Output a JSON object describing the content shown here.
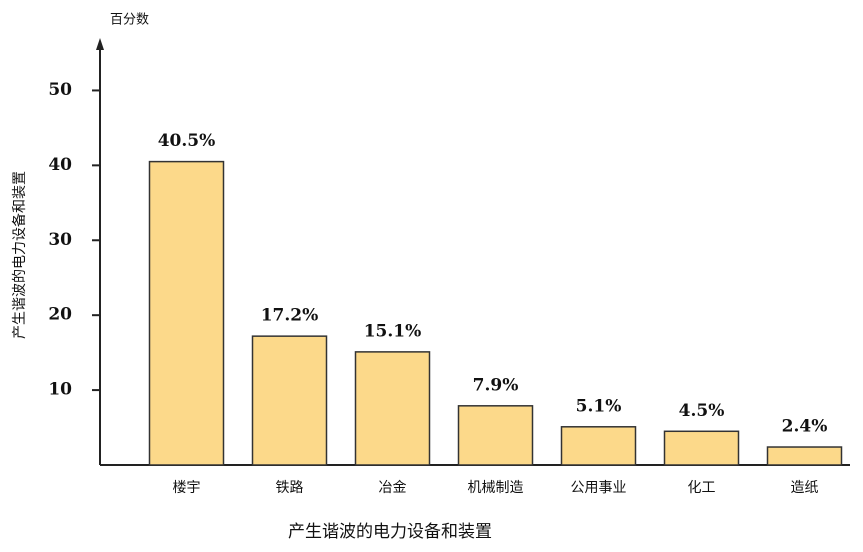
{
  "chart_data": {
    "type": "bar",
    "title": "产生谐波的电力设备和装置",
    "y_axis_label": "产生谐波的电力设备和装置",
    "y_unit_label": "百分数",
    "categories": [
      "楼宇",
      "铁路",
      "冶金",
      "机械制造",
      "公用事业",
      "化工",
      "造纸"
    ],
    "values": [
      40.5,
      17.2,
      15.1,
      7.9,
      5.1,
      4.5,
      2.4
    ],
    "value_labels": [
      "40.5%",
      "17.2%",
      "15.1%",
      "7.9%",
      "5.1%",
      "4.5%",
      "2.4%"
    ],
    "color": "#fcd98a",
    "ylim": [
      0,
      57
    ],
    "yticks": [
      10,
      20,
      30,
      40,
      50
    ]
  }
}
